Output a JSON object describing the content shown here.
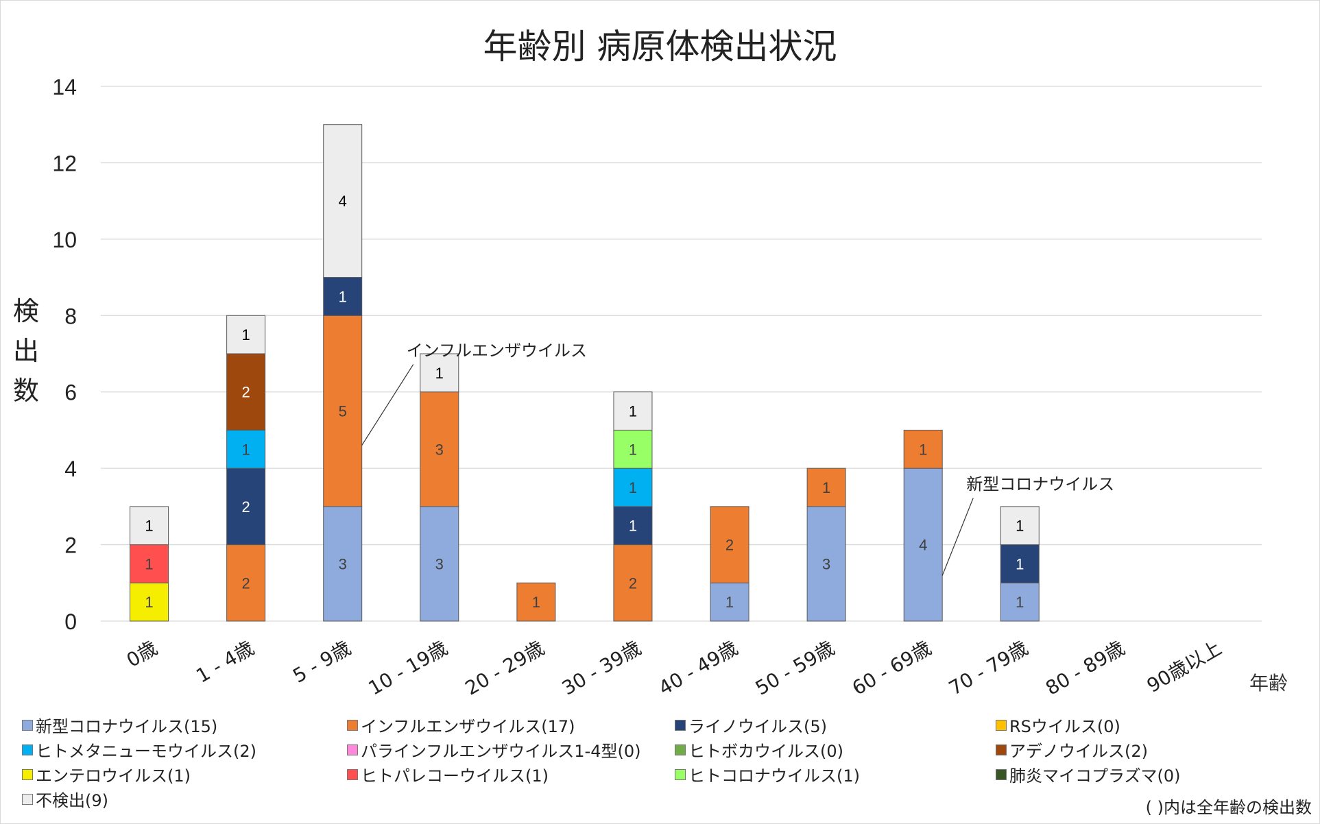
{
  "chart_data": {
    "type": "bar",
    "stacked": true,
    "title": "年齢別 病原体検出状況",
    "xlabel": "年齢",
    "ylabel": "検出数",
    "ylim": [
      0,
      14
    ],
    "yticks": [
      0,
      2,
      4,
      6,
      8,
      10,
      12,
      14
    ],
    "grid": true,
    "legend_position": "bottom",
    "categories": [
      "0歳",
      "1 - 4歳",
      "5 - 9歳",
      "10 - 19歳",
      "20 - 29歳",
      "30 - 39歳",
      "40 - 49歳",
      "50 - 59歳",
      "60 - 69歳",
      "70 - 79歳",
      "80 - 89歳",
      "90歳以上"
    ],
    "series": [
      {
        "name": "新型コロナウイルス",
        "legend": "新型コロナウイルス(15)",
        "color": "#8faadc",
        "label_color": "#404040",
        "values": [
          0,
          0,
          3,
          3,
          0,
          0,
          1,
          3,
          4,
          1,
          0,
          0
        ]
      },
      {
        "name": "インフルエンザウイルス",
        "legend": "インフルエンザウイルス(17)",
        "color": "#ed7d31",
        "label_color": "#404040",
        "values": [
          0,
          2,
          5,
          3,
          1,
          2,
          2,
          1,
          1,
          0,
          0,
          0
        ]
      },
      {
        "name": "ライノウイルス",
        "legend": "ライノウイルス(5)",
        "color": "#264478",
        "label_color": "#ffffff",
        "values": [
          0,
          2,
          1,
          0,
          0,
          1,
          0,
          0,
          0,
          1,
          0,
          0
        ]
      },
      {
        "name": "RSウイルス",
        "legend": "RSウイルス(0)",
        "color": "#ffc000",
        "label_color": "#404040",
        "values": [
          0,
          0,
          0,
          0,
          0,
          0,
          0,
          0,
          0,
          0,
          0,
          0
        ]
      },
      {
        "name": "ヒトメタニューモウイルス",
        "legend": "ヒトメタニューモウイルス(2)",
        "color": "#00b0f0",
        "label_color": "#404040",
        "values": [
          0,
          1,
          0,
          0,
          0,
          1,
          0,
          0,
          0,
          0,
          0,
          0
        ]
      },
      {
        "name": "パラインフルエンザウイルス1-4型",
        "legend": "パラインフルエンザウイルス1-4型(0)",
        "color": "#ff88dd",
        "label_color": "#404040",
        "values": [
          0,
          0,
          0,
          0,
          0,
          0,
          0,
          0,
          0,
          0,
          0,
          0
        ]
      },
      {
        "name": "ヒトボカウイルス",
        "legend": "ヒトボカウイルス(0)",
        "color": "#70ad47",
        "label_color": "#404040",
        "values": [
          0,
          0,
          0,
          0,
          0,
          0,
          0,
          0,
          0,
          0,
          0,
          0
        ]
      },
      {
        "name": "アデノウイルス",
        "legend": "アデノウイルス(2)",
        "color": "#9e480e",
        "label_color": "#ffffff",
        "values": [
          0,
          2,
          0,
          0,
          0,
          0,
          0,
          0,
          0,
          0,
          0,
          0
        ]
      },
      {
        "name": "エンテロウイルス",
        "legend": "エンテロウイルス(1)",
        "color": "#f5ee00",
        "label_color": "#404040",
        "values": [
          1,
          0,
          0,
          0,
          0,
          0,
          0,
          0,
          0,
          0,
          0,
          0
        ]
      },
      {
        "name": "ヒトパレコーウイルス",
        "legend": "ヒトパレコーウイルス(1)",
        "color": "#ff4f4f",
        "label_color": "#404040",
        "values": [
          1,
          0,
          0,
          0,
          0,
          0,
          0,
          0,
          0,
          0,
          0,
          0
        ]
      },
      {
        "name": "ヒトコロナウイルス",
        "legend": "ヒトコロナウイルス(1)",
        "color": "#99ff66",
        "label_color": "#404040",
        "values": [
          0,
          0,
          0,
          0,
          0,
          1,
          0,
          0,
          0,
          0,
          0,
          0
        ]
      },
      {
        "name": "肺炎マイコプラズマ",
        "legend": "肺炎マイコプラズマ(0)",
        "color": "#375623",
        "label_color": "#ffffff",
        "values": [
          0,
          0,
          0,
          0,
          0,
          0,
          0,
          0,
          0,
          0,
          0,
          0
        ]
      },
      {
        "name": "不検出",
        "legend": "不検出(9)",
        "color": "#ededed",
        "label_color": "#000000",
        "values": [
          1,
          1,
          4,
          1,
          0,
          1,
          0,
          0,
          0,
          1,
          0,
          0
        ]
      }
    ],
    "annotations": [
      {
        "text": "インフルエンザウイルス",
        "series": "インフルエンザウイルス",
        "category": "5 - 9歳"
      },
      {
        "text": "新型コロナウイルス",
        "series": "新型コロナウイルス",
        "category": "60 - 69歳"
      }
    ],
    "note": "( )内は全年齢の検出数"
  }
}
